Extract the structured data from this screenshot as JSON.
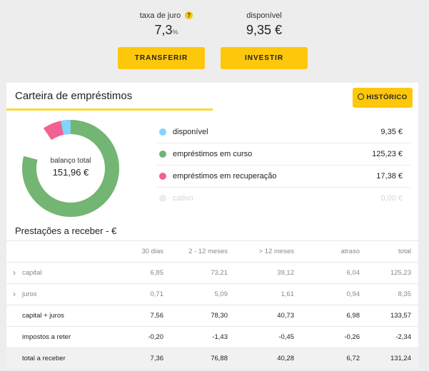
{
  "top": {
    "rate_label": "taxa de juro",
    "rate_value": "7,3",
    "rate_unit": "%",
    "available_label": "disponível",
    "available_value": "9,35 €",
    "transfer_label": "TRANSFERIR",
    "invest_label": "INVESTIR"
  },
  "portfolio": {
    "title": "Carteira de empréstimos",
    "history_label": "HISTÓRICO",
    "donut_label": "balanço total",
    "donut_value": "151,96 €",
    "legend": [
      {
        "name": "disponível",
        "amount": "9,35 €",
        "color": "#81d4fa"
      },
      {
        "name": "empréstimos em curso",
        "amount": "125,23 €",
        "color": "#73b573"
      },
      {
        "name": "empréstimos em recuperação",
        "amount": "17,38 €",
        "color": "#f06292"
      },
      {
        "name": "cativo",
        "amount": "0,00 €",
        "color": "#ececec"
      }
    ]
  },
  "chart_data": {
    "type": "pie",
    "labels": [
      "disponível",
      "empréstimos em curso",
      "empréstimos em recuperação",
      "cativo"
    ],
    "values": [
      9.35,
      125.23,
      17.38,
      0.0
    ],
    "colors": [
      "#81d4fa",
      "#73b573",
      "#f06292",
      "#ececec"
    ]
  },
  "installments": {
    "title": "Prestações a receber - €",
    "headers": [
      "",
      "30 dias",
      "2 - 12 meses",
      "> 12 meses",
      "atraso",
      "total"
    ],
    "rows": [
      {
        "label": "capital",
        "values": [
          "6,85",
          "73,21",
          "39,12",
          "6,04",
          "125,23"
        ]
      },
      {
        "label": "juros",
        "values": [
          "0,71",
          "5,09",
          "1,61",
          "0,94",
          "8,35"
        ]
      },
      {
        "label": "capital + juros",
        "values": [
          "7,56",
          "78,30",
          "40,73",
          "6,98",
          "133,57"
        ]
      },
      {
        "label": "impostos a reter",
        "values": [
          "-0,20",
          "-1,43",
          "-0,45",
          "-0,26",
          "-2,34"
        ]
      },
      {
        "label": "total a receber",
        "values": [
          "7,36",
          "76,88",
          "40,28",
          "6,72",
          "131,24"
        ]
      }
    ]
  }
}
